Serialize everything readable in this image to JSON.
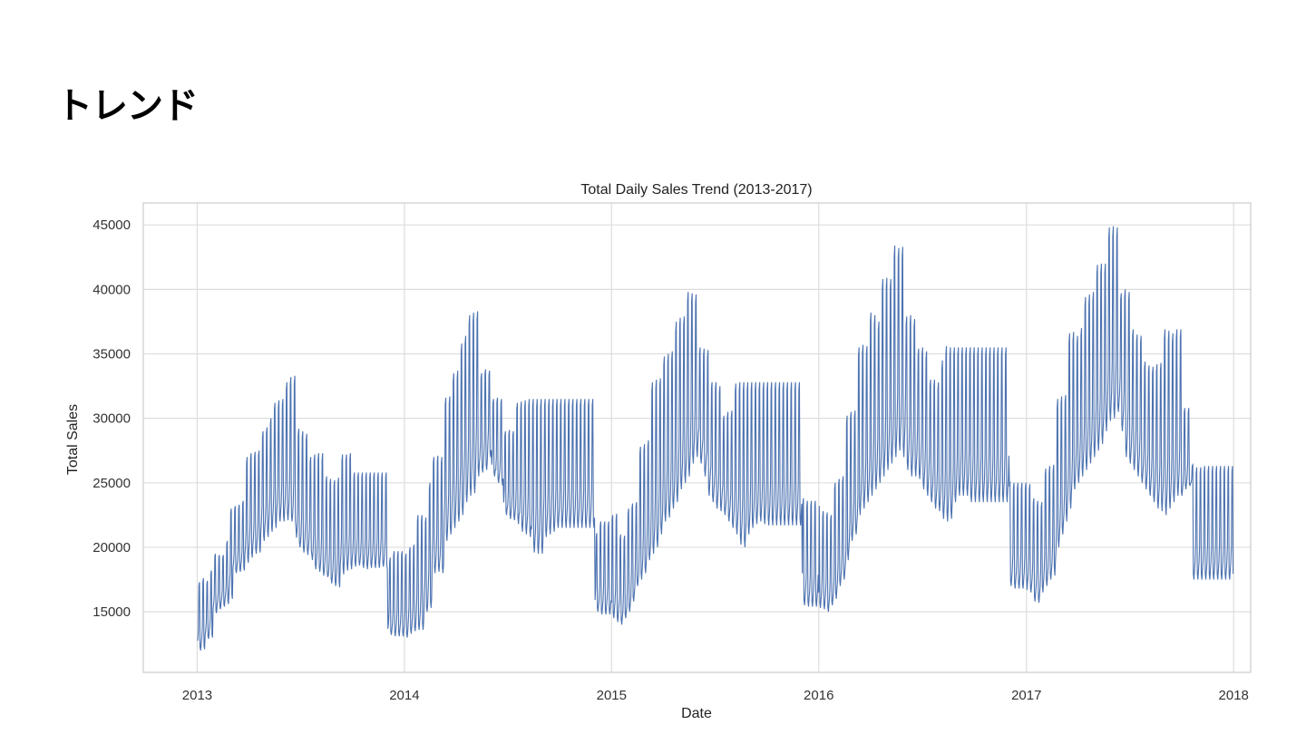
{
  "slide": {
    "title": "トレンド"
  },
  "chart_data": {
    "type": "line",
    "title": "Total Daily Sales Trend (2013-2017)",
    "xlabel": "Date",
    "ylabel": "Total Sales",
    "x_ticks": [
      "2013",
      "2014",
      "2015",
      "2016",
      "2017",
      "2018"
    ],
    "y_ticks": [
      15000,
      20000,
      25000,
      30000,
      35000,
      40000,
      45000
    ],
    "xlim": [
      "2012-09-28",
      "2018-01-31"
    ],
    "ylim": [
      10300,
      46700
    ],
    "grid": true,
    "line_color": "#4c72b0",
    "series": [
      {
        "weekly_low": [
          12000,
          12100,
          12900,
          13000,
          14900,
          15200,
          15400,
          15600,
          16000,
          18000,
          18100,
          18200,
          18800,
          19200,
          19500,
          19600,
          20500,
          20800,
          21200,
          21500,
          22000,
          22000,
          22100,
          22000,
          21500,
          20000,
          19600,
          19400,
          19400,
          18300,
          18100,
          17800,
          17700,
          17200,
          17000,
          16900,
          17900,
          18200,
          18300,
          18500,
          18600,
          18400,
          18300,
          18400,
          18400,
          18400,
          18500,
          18300,
          13200,
          13100,
          13000,
          13300,
          13500,
          13600,
          13600,
          15000,
          15300,
          18000,
          18100,
          18000,
          20500,
          21000,
          21500,
          22000,
          22500,
          23500,
          24000,
          24200,
          25500,
          25800,
          26000,
          27000,
          25500,
          25000,
          24800,
          22500,
          22200,
          22100,
          21800,
          21200,
          21000,
          20800,
          19600,
          19500,
          19500,
          20800,
          21000,
          21200,
          21500,
          21500,
          21500,
          21500,
          21500,
          21500,
          21500,
          21500,
          21500,
          21500,
          15000,
          14800,
          14500,
          14200,
          14000,
          14500,
          15000,
          15800,
          17000,
          17500,
          18000,
          19000,
          19500,
          20000,
          21000,
          22000,
          22300,
          23000,
          23500,
          24500,
          25000,
          25500,
          26500,
          27000,
          26500,
          25500,
          24000,
          23500,
          23000,
          22800,
          22500,
          22000,
          21500,
          21000,
          20200,
          20000,
          21000,
          21500,
          21800,
          22000,
          21800,
          21700,
          21700,
          21700,
          21700,
          21700,
          21700,
          21700,
          21700,
          21700,
          15500,
          15400,
          15300,
          15200,
          15000,
          15500,
          16000,
          17000,
          17500,
          19000,
          20500,
          21000,
          22500,
          23000,
          23500,
          24000,
          24500,
          25000,
          25500,
          26000,
          26500,
          27000,
          27500,
          27000,
          26000,
          25500,
          25500,
          25300,
          24500,
          24000,
          23500,
          23000,
          22800,
          22200,
          22000,
          22200,
          23500,
          24000,
          24000,
          24000,
          23500,
          23500,
          23500,
          23500,
          23500,
          23500,
          23500,
          23500,
          23500,
          23500,
          17000,
          16800,
          16700,
          16500,
          15800,
          15700,
          16500,
          17000,
          17500,
          17800,
          20000,
          21000,
          22000,
          23000,
          24500,
          25000,
          25500,
          26000,
          26500,
          27000,
          27500,
          28000,
          29000,
          29800,
          30000,
          30500,
          29000,
          27000,
          26500,
          26000,
          25500,
          25000,
          24500,
          24000,
          23500,
          23000,
          22800,
          22500,
          23000,
          23500,
          24000,
          24000,
          24500,
          24800,
          17500,
          17500,
          17500,
          17500,
          17500,
          17500,
          17500,
          17500
        ],
        "weekly_high": [
          17300,
          17600,
          17400,
          18200,
          19500,
          19400,
          19400,
          20500,
          23000,
          23200,
          23300,
          23600,
          27000,
          27300,
          27400,
          27500,
          29000,
          29300,
          30000,
          31200,
          31400,
          31500,
          32800,
          33200,
          33300,
          29200,
          29000,
          28800,
          27000,
          27200,
          27300,
          27300,
          25500,
          25300,
          25200,
          25400,
          27200,
          27200,
          27300,
          25800,
          25800,
          25800,
          25800,
          25800,
          25800,
          25800,
          25800,
          25800,
          19200,
          19700,
          19500,
          20000,
          20200,
          22500,
          22500,
          22300,
          25000,
          27000,
          27100,
          27000,
          31600,
          31700,
          33500,
          33700,
          35800,
          36400,
          38000,
          38200,
          38300,
          33500,
          33800,
          33700,
          31500,
          31600,
          31500,
          29000,
          29100,
          29000,
          31200,
          31300,
          31400,
          31500,
          31500,
          31500,
          31500,
          31500,
          31500,
          31500,
          31500,
          31500,
          31500,
          31500,
          31500,
          31500,
          31500,
          31500,
          31500,
          31500,
          21100,
          22000,
          22500,
          22600,
          21000,
          20900,
          23000,
          23400,
          23500,
          27800,
          28000,
          28300,
          32800,
          33000,
          33100,
          34800,
          35000,
          35200,
          37500,
          37800,
          37900,
          39800,
          39700,
          39600,
          35500,
          35400,
          35300,
          32800,
          32800,
          32500,
          30200,
          30500,
          30600,
          32700,
          32800,
          32800,
          32800,
          32800,
          32800,
          32800,
          32800,
          32800,
          32800,
          32800,
          32800,
          32800,
          32800,
          32800,
          32800,
          32800,
          23800,
          23600,
          23200,
          22800,
          22700,
          22500,
          25000,
          25300,
          25500,
          30200,
          30500,
          30600,
          35500,
          35700,
          35600,
          38200,
          38000,
          37500,
          40800,
          40900,
          40800,
          43400,
          43200,
          43300,
          37900,
          38000,
          37700,
          35400,
          35500,
          35200,
          33000,
          33000,
          32800,
          34500,
          35600,
          35500,
          35500,
          35500,
          35500,
          35500,
          35500,
          35500,
          35500,
          35500,
          35500,
          35500,
          35500,
          35500,
          35500,
          35500,
          25100,
          25000,
          24900,
          23800,
          23600,
          23500,
          26100,
          26300,
          26400,
          31500,
          31700,
          31800,
          36600,
          36700,
          36400,
          37000,
          39400,
          39600,
          39800,
          41900,
          42000,
          42000,
          44800,
          44900,
          44800,
          39700,
          40000,
          39800,
          36900,
          36500,
          36400,
          34400,
          34100,
          34000,
          34200,
          34300,
          36900,
          36800,
          36600,
          36900,
          36900,
          30800,
          30800,
          26400,
          26200,
          26200,
          26300,
          26300,
          26300,
          26300,
          26300,
          26300
        ]
      }
    ]
  }
}
